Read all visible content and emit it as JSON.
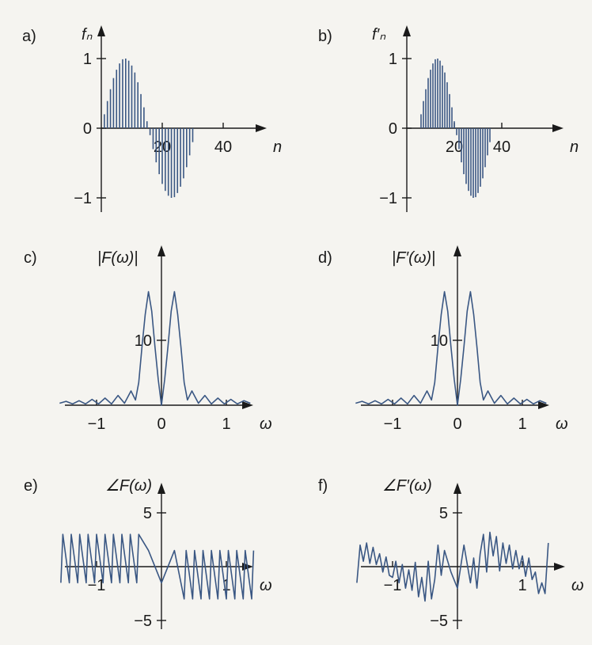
{
  "colors": {
    "data": "#3a5783",
    "axis": "#1a1a1a",
    "background": "#f5f4f0"
  },
  "chart_data": [
    {
      "id": "a",
      "type": "bar",
      "panel_label": "a)",
      "ylabel": "fₙ",
      "xlabel": "n",
      "xlim": [
        0,
        48
      ],
      "ylim": [
        -1.1,
        1.1
      ],
      "xticks": [
        {
          "v": 20,
          "t": "20"
        },
        {
          "v": 40,
          "t": "40"
        }
      ],
      "yticks": [
        {
          "v": 1,
          "t": "1"
        },
        {
          "v": 0,
          "t": "0"
        },
        {
          "v": -1,
          "t": "−1"
        }
      ],
      "x": [
        1,
        2,
        3,
        4,
        5,
        6,
        7,
        8,
        9,
        10,
        11,
        12,
        13,
        14,
        15,
        16,
        17,
        18,
        19,
        20,
        21,
        22,
        23,
        24,
        25,
        26,
        27,
        28,
        29,
        30,
        31
      ],
      "values": [
        0.2,
        0.39,
        0.56,
        0.72,
        0.84,
        0.93,
        0.99,
        1.0,
        0.97,
        0.9,
        0.8,
        0.66,
        0.49,
        0.3,
        0.1,
        -0.1,
        -0.3,
        -0.49,
        -0.66,
        -0.8,
        -0.9,
        -0.97,
        -1.0,
        -0.99,
        -0.93,
        -0.84,
        -0.72,
        -0.56,
        -0.39,
        -0.2,
        0.0
      ]
    },
    {
      "id": "b",
      "type": "bar",
      "panel_label": "b)",
      "ylabel": "f′ₙ",
      "xlabel": "n",
      "xlim": [
        0,
        48
      ],
      "ylim": [
        -1.1,
        1.1
      ],
      "xticks": [
        {
          "v": 20,
          "t": "20"
        },
        {
          "v": 40,
          "t": "40"
        }
      ],
      "yticks": [
        {
          "v": 1,
          "t": "1"
        },
        {
          "v": 0,
          "t": "0"
        },
        {
          "v": -1,
          "t": "−1"
        }
      ],
      "x": [
        1,
        2,
        3,
        4,
        5,
        6,
        7,
        8,
        9,
        10,
        11,
        12,
        13,
        14,
        15,
        16,
        17,
        18,
        19,
        20,
        21,
        22,
        23,
        24,
        25,
        26,
        27,
        28,
        29,
        30,
        31,
        32,
        33,
        34,
        35,
        36,
        37,
        38,
        39,
        40,
        41,
        42,
        43,
        44,
        45,
        46,
        47
      ],
      "values": [
        0,
        0,
        0,
        0,
        0,
        0.2,
        0.39,
        0.56,
        0.72,
        0.84,
        0.93,
        0.99,
        1.0,
        0.97,
        0.9,
        0.8,
        0.66,
        0.49,
        0.3,
        0.1,
        -0.1,
        -0.3,
        -0.49,
        -0.66,
        -0.8,
        -0.9,
        -0.97,
        -1.0,
        -0.99,
        -0.93,
        -0.84,
        -0.72,
        -0.56,
        -0.39,
        -0.2,
        0,
        0,
        0,
        0,
        0,
        0,
        0,
        0,
        0,
        0,
        0,
        0
      ]
    },
    {
      "id": "c",
      "type": "line",
      "panel_label": "c)",
      "ylabel": "|F(ω)|",
      "xlabel": "ω",
      "xlim": [
        -1.6,
        1.45
      ],
      "ylim": [
        0,
        20
      ],
      "xticks": [
        {
          "v": -1,
          "t": "−1"
        },
        {
          "v": 0,
          "t": "0"
        },
        {
          "v": 1,
          "t": "1"
        }
      ],
      "yticks": [
        {
          "v": 10,
          "t": "10"
        }
      ],
      "x": [
        -1.57,
        -1.47,
        -1.37,
        -1.27,
        -1.17,
        -1.07,
        -0.97,
        -0.87,
        -0.77,
        -0.67,
        -0.57,
        -0.47,
        -0.4,
        -0.35,
        -0.3,
        -0.25,
        -0.2,
        -0.15,
        -0.1,
        -0.05,
        0,
        0.05,
        0.1,
        0.15,
        0.2,
        0.25,
        0.3,
        0.35,
        0.4,
        0.47,
        0.57,
        0.67,
        0.77,
        0.87,
        0.97,
        1.07,
        1.17,
        1.27,
        1.37
      ],
      "values": [
        0.3,
        0.6,
        0.2,
        0.7,
        0.2,
        0.9,
        0.2,
        1.1,
        0.2,
        1.5,
        0.3,
        2.2,
        0.8,
        3.5,
        9.0,
        14.0,
        17.5,
        14.5,
        9.0,
        4.0,
        0,
        4.0,
        9.0,
        14.5,
        17.5,
        14.0,
        9.0,
        3.5,
        0.8,
        2.2,
        0.3,
        1.5,
        0.2,
        1.1,
        0.2,
        0.9,
        0.2,
        0.7,
        0.3
      ]
    },
    {
      "id": "d",
      "type": "line",
      "panel_label": "d)",
      "ylabel": "|F′(ω)|",
      "xlabel": "ω",
      "xlim": [
        -1.6,
        1.45
      ],
      "ylim": [
        0,
        20
      ],
      "xticks": [
        {
          "v": -1,
          "t": "−1"
        },
        {
          "v": 0,
          "t": "0"
        },
        {
          "v": 1,
          "t": "1"
        }
      ],
      "yticks": [
        {
          "v": 10,
          "t": "10"
        }
      ],
      "x": [
        -1.57,
        -1.47,
        -1.37,
        -1.27,
        -1.17,
        -1.07,
        -0.97,
        -0.87,
        -0.77,
        -0.67,
        -0.57,
        -0.47,
        -0.4,
        -0.35,
        -0.3,
        -0.25,
        -0.2,
        -0.15,
        -0.1,
        -0.05,
        0,
        0.05,
        0.1,
        0.15,
        0.2,
        0.25,
        0.3,
        0.35,
        0.4,
        0.47,
        0.57,
        0.67,
        0.77,
        0.87,
        0.97,
        1.07,
        1.17,
        1.27,
        1.37
      ],
      "values": [
        0.3,
        0.6,
        0.2,
        0.7,
        0.2,
        0.9,
        0.2,
        1.1,
        0.2,
        1.5,
        0.3,
        2.2,
        0.8,
        3.5,
        9.0,
        14.0,
        17.5,
        14.5,
        9.0,
        4.0,
        0,
        4.0,
        9.0,
        14.5,
        17.5,
        14.0,
        9.0,
        3.5,
        0.8,
        2.2,
        0.3,
        1.5,
        0.2,
        1.1,
        0.2,
        0.9,
        0.2,
        0.7,
        0.3
      ]
    },
    {
      "id": "e",
      "type": "line",
      "panel_label": "e)",
      "ylabel": "∠F(ω)",
      "xlabel": "ω",
      "xlim": [
        -1.6,
        1.45
      ],
      "ylim": [
        -6.5,
        7
      ],
      "xticks": [
        {
          "v": -1,
          "t": "−1"
        },
        {
          "v": 1,
          "t": "1"
        }
      ],
      "yticks": [
        {
          "v": 5,
          "t": "5"
        },
        {
          "v": -5,
          "t": "−5"
        }
      ],
      "x": [
        -1.55,
        -1.52,
        -1.42,
        -1.39,
        -1.29,
        -1.26,
        -1.16,
        -1.13,
        -1.03,
        -1.0,
        -0.9,
        -0.87,
        -0.77,
        -0.74,
        -0.64,
        -0.61,
        -0.51,
        -0.48,
        -0.38,
        -0.35,
        -0.2,
        0,
        0.2,
        0.35,
        0.38,
        0.48,
        0.51,
        0.61,
        0.64,
        0.74,
        0.77,
        0.87,
        0.9,
        1.0,
        1.03,
        1.13,
        1.16,
        1.26,
        1.29,
        1.39,
        1.42
      ],
      "values": [
        -1.5,
        3.0,
        -1.5,
        3.0,
        -1.5,
        3.0,
        -1.5,
        3.0,
        -1.5,
        3.0,
        -1.5,
        3.0,
        -1.5,
        3.0,
        -1.5,
        3.0,
        -1.5,
        3.0,
        -1.5,
        3.0,
        1.5,
        -1.5,
        1.5,
        -3.0,
        1.5,
        -3.0,
        1.5,
        -3.0,
        1.5,
        -3.0,
        1.5,
        -3.0,
        1.5,
        -3.0,
        1.5,
        -3.0,
        1.5,
        -3.0,
        1.5,
        -3.0,
        1.5
      ]
    },
    {
      "id": "f",
      "type": "line",
      "panel_label": "f)",
      "ylabel": "∠F′(ω)",
      "xlabel": "ω",
      "xlim": [
        -1.6,
        1.45
      ],
      "ylim": [
        -6.5,
        7
      ],
      "xticks": [
        {
          "v": -1,
          "t": "−1"
        },
        {
          "v": 1,
          "t": "1"
        }
      ],
      "yticks": [
        {
          "v": 5,
          "t": "5"
        },
        {
          "v": -5,
          "t": "−5"
        }
      ],
      "x": [
        -1.55,
        -1.5,
        -1.45,
        -1.4,
        -1.35,
        -1.3,
        -1.25,
        -1.2,
        -1.15,
        -1.1,
        -1.05,
        -1.0,
        -0.95,
        -0.9,
        -0.85,
        -0.8,
        -0.75,
        -0.7,
        -0.65,
        -0.6,
        -0.55,
        -0.5,
        -0.45,
        -0.4,
        -0.35,
        -0.3,
        -0.25,
        -0.2,
        -0.1,
        0,
        0.1,
        0.2,
        0.25,
        0.3,
        0.35,
        0.4,
        0.45,
        0.5,
        0.55,
        0.6,
        0.65,
        0.7,
        0.75,
        0.8,
        0.85,
        0.9,
        0.95,
        1.0,
        1.05,
        1.1,
        1.15,
        1.2,
        1.25,
        1.3,
        1.35,
        1.4
      ],
      "values": [
        -1.5,
        2.0,
        0.5,
        2.2,
        0.3,
        1.8,
        0.2,
        1.2,
        -0.5,
        0.9,
        -0.8,
        -1.0,
        0.5,
        -1.5,
        0.2,
        -2.0,
        -0.3,
        -2.2,
        0.4,
        -2.8,
        -1.0,
        -3.2,
        0.5,
        -3.0,
        -1.2,
        2.0,
        -0.8,
        1.5,
        -0.5,
        -2.0,
        2.0,
        -1.5,
        0.8,
        -2.0,
        1.2,
        3.0,
        -0.5,
        3.2,
        1.0,
        2.8,
        -0.4,
        2.2,
        0.3,
        2.0,
        -0.2,
        1.5,
        -0.2,
        1.0,
        -0.9,
        0.8,
        -1.2,
        -0.5,
        -2.5,
        -1.5,
        -2.5,
        2.2
      ]
    }
  ]
}
